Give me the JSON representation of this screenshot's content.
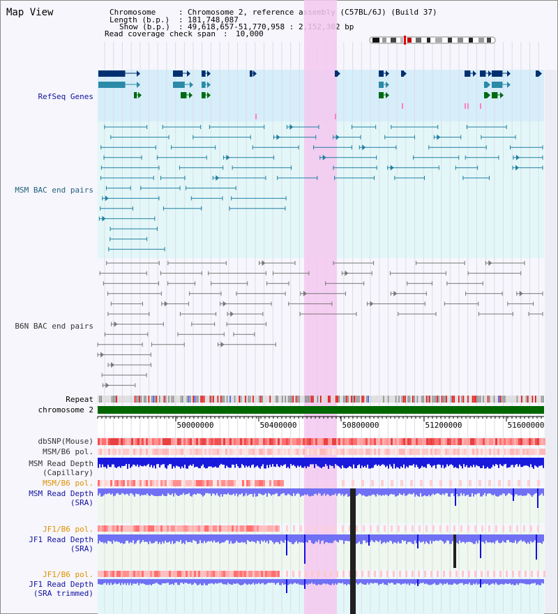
{
  "title": "Map View",
  "header": {
    "chromosome_key": "Chromosome",
    "chromosome_value": "Chromosome 2, reference assembly (C57BL/6J) (Build 37)",
    "length_key": "Length (b.p.)",
    "length_value": "181,748,087",
    "show_key": "Show (b.p.)",
    "show_value": "49,618,657-51,770,958 : 2,152,302 bp",
    "coverage_key": "Read coverage check span",
    "coverage_value": "10,000"
  },
  "tracks": {
    "refseq": "RefSeq Genes",
    "msm_bac": "MSM BAC end pairs",
    "b6n_bac": "B6N BAC end pairs",
    "repeat": "Repeat",
    "chromosome": "chromosome 2",
    "dbsnp": "dbSNP(Mouse)",
    "msm_pol": "MSM/B6 pol.",
    "msm_depth_line1": "MSM Read Depth",
    "msm_depth_line2": "(Capillary)",
    "msm_pol2": "MSM/B6 pol.",
    "msm_sra_line1": "MSM Read Depth",
    "msm_sra_line2": "(SRA)",
    "jf1_pol": "JF1/B6 pol.",
    "jf1_sra_line1": "JF1 Read Depth",
    "jf1_sra_line2": "(SRA)",
    "jf1_pol2": "JF1/B6 pol.",
    "jf1_trim_line1": "JF1 Read Depth",
    "jf1_trim_line2": "(SRA trimmed)"
  },
  "axis": {
    "ticks": [
      "50000000",
      "50400000",
      "50800000",
      "51200000",
      "51600000"
    ]
  },
  "colors": {
    "highlight": "#f4c8f0",
    "refseq_bg": "#d6eefa",
    "msm_bg": "#e3f7f8",
    "navy": "#003070",
    "teal": "#2a8aa8",
    "green": "#006a10",
    "chromosome": "#006600",
    "depth_capillary": "#1a1adc",
    "depth_sra": "#7070f4",
    "orange_label": "#e09000",
    "navy_label": "#1010a0"
  }
}
